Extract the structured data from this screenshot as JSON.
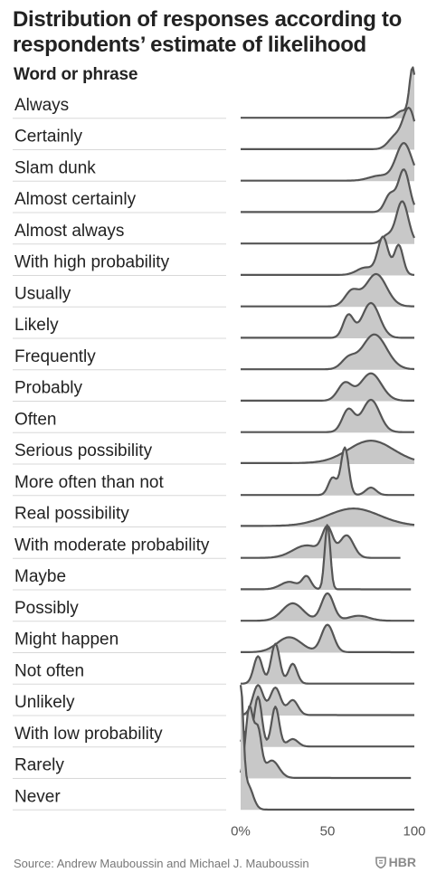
{
  "header": {
    "title": "Distribution of responses according to respondents’ estimate of likelihood",
    "column_label": "Word or phrase"
  },
  "footer": {
    "source": "Source: Andrew Mauboussin and Michael J. Mauboussin",
    "brand": "HBR",
    "brand_icon": "shield-icon"
  },
  "chart_data": {
    "type": "ridgeline",
    "title": "Distribution of responses according to respondents’ estimate of likelihood",
    "ylabel": "Word or phrase",
    "xlim": [
      0,
      100
    ],
    "x_ticks": [
      "0%",
      "50",
      "100"
    ],
    "x_tick_values": [
      0,
      50,
      100
    ],
    "fill_color": "#c8c8c8",
    "line_color": "#555555",
    "series": [
      {
        "name": "Always",
        "start": 0,
        "end": 100,
        "base": 0.01,
        "peaks": [
          {
            "mu": 99,
            "sigma": 1.8,
            "h": 1.0
          },
          {
            "mu": 93,
            "sigma": 3,
            "h": 0.14
          }
        ]
      },
      {
        "name": "Certainly",
        "start": 0,
        "end": 100,
        "base": 0.01,
        "peaks": [
          {
            "mu": 97,
            "sigma": 3.5,
            "h": 0.8
          },
          {
            "mu": 89,
            "sigma": 4,
            "h": 0.25
          }
        ]
      },
      {
        "name": "Slam dunk",
        "start": 0,
        "end": 100,
        "base": 0.01,
        "peaks": [
          {
            "mu": 94,
            "sigma": 4.5,
            "h": 0.75
          },
          {
            "mu": 80,
            "sigma": 6,
            "h": 0.1
          }
        ]
      },
      {
        "name": "Almost certainly",
        "start": 0,
        "end": 100,
        "base": 0.01,
        "peaks": [
          {
            "mu": 94,
            "sigma": 3.2,
            "h": 0.85
          },
          {
            "mu": 86,
            "sigma": 3,
            "h": 0.35
          }
        ]
      },
      {
        "name": "Almost always",
        "start": 0,
        "end": 100,
        "base": 0.01,
        "peaks": [
          {
            "mu": 93,
            "sigma": 3.5,
            "h": 0.85
          },
          {
            "mu": 84,
            "sigma": 3,
            "h": 0.15
          }
        ]
      },
      {
        "name": "With high probability",
        "start": 0,
        "end": 100,
        "base": 0.01,
        "peaks": [
          {
            "mu": 82,
            "sigma": 3,
            "h": 0.75
          },
          {
            "mu": 91,
            "sigma": 2.5,
            "h": 0.6
          },
          {
            "mu": 72,
            "sigma": 5,
            "h": 0.15
          }
        ]
      },
      {
        "name": "Usually",
        "start": 0,
        "end": 100,
        "base": 0.01,
        "peaks": [
          {
            "mu": 78,
            "sigma": 6,
            "h": 0.65
          },
          {
            "mu": 64,
            "sigma": 4,
            "h": 0.3
          }
        ]
      },
      {
        "name": "Likely",
        "start": 0,
        "end": 100,
        "base": 0.01,
        "peaks": [
          {
            "mu": 75,
            "sigma": 5,
            "h": 0.7
          },
          {
            "mu": 62,
            "sigma": 3,
            "h": 0.45
          }
        ]
      },
      {
        "name": "Frequently",
        "start": 0,
        "end": 100,
        "base": 0.01,
        "peaks": [
          {
            "mu": 77,
            "sigma": 7,
            "h": 0.7
          },
          {
            "mu": 62,
            "sigma": 4,
            "h": 0.2
          }
        ]
      },
      {
        "name": "Probably",
        "start": 0,
        "end": 100,
        "base": 0.01,
        "peaks": [
          {
            "mu": 75,
            "sigma": 6,
            "h": 0.55
          },
          {
            "mu": 60,
            "sigma": 4,
            "h": 0.35
          }
        ]
      },
      {
        "name": "Often",
        "start": 0,
        "end": 100,
        "base": 0.01,
        "peaks": [
          {
            "mu": 75,
            "sigma": 5,
            "h": 0.65
          },
          {
            "mu": 62,
            "sigma": 3.5,
            "h": 0.45
          }
        ]
      },
      {
        "name": "Serious possibility",
        "start": 0,
        "end": 100,
        "base": 0.02,
        "peaks": [
          {
            "mu": 75,
            "sigma": 13,
            "h": 0.45
          }
        ]
      },
      {
        "name": "More often than not",
        "start": 0,
        "end": 100,
        "base": 0.01,
        "peaks": [
          {
            "mu": 60,
            "sigma": 2.2,
            "h": 0.95
          },
          {
            "mu": 53,
            "sigma": 2.5,
            "h": 0.35
          },
          {
            "mu": 75,
            "sigma": 3,
            "h": 0.15
          }
        ]
      },
      {
        "name": "Real possibility",
        "start": 0,
        "end": 100,
        "base": 0.02,
        "peaks": [
          {
            "mu": 65,
            "sigma": 15,
            "h": 0.35
          }
        ]
      },
      {
        "name": "With moderate probability",
        "start": 0,
        "end": 92,
        "base": 0.01,
        "peaks": [
          {
            "mu": 50,
            "sigma": 3,
            "h": 0.55
          },
          {
            "mu": 61,
            "sigma": 4,
            "h": 0.45
          },
          {
            "mu": 38,
            "sigma": 8,
            "h": 0.25
          }
        ]
      },
      {
        "name": "Maybe",
        "start": 0,
        "end": 98,
        "base": 0.01,
        "peaks": [
          {
            "mu": 50,
            "sigma": 1.6,
            "h": 1.3
          },
          {
            "mu": 38,
            "sigma": 2.5,
            "h": 0.25
          },
          {
            "mu": 28,
            "sigma": 5,
            "h": 0.15
          }
        ]
      },
      {
        "name": "Possibly",
        "start": 0,
        "end": 100,
        "base": 0.01,
        "peaks": [
          {
            "mu": 50,
            "sigma": 3.5,
            "h": 0.55
          },
          {
            "mu": 30,
            "sigma": 6,
            "h": 0.35
          },
          {
            "mu": 68,
            "sigma": 6,
            "h": 0.1
          }
        ]
      },
      {
        "name": "Might happen",
        "start": 0,
        "end": 100,
        "base": 0.01,
        "peaks": [
          {
            "mu": 50,
            "sigma": 3.5,
            "h": 0.55
          },
          {
            "mu": 28,
            "sigma": 7,
            "h": 0.3
          }
        ]
      },
      {
        "name": "Not often",
        "start": 0,
        "end": 100,
        "base": 0.01,
        "peaks": [
          {
            "mu": 20,
            "sigma": 2.5,
            "h": 0.8
          },
          {
            "mu": 10,
            "sigma": 2.5,
            "h": 0.55
          },
          {
            "mu": 30,
            "sigma": 2.5,
            "h": 0.4
          }
        ]
      },
      {
        "name": "Unlikely",
        "start": 0,
        "end": 100,
        "base": 0.01,
        "peaks": [
          {
            "mu": 10,
            "sigma": 3,
            "h": 0.6
          },
          {
            "mu": 20,
            "sigma": 3,
            "h": 0.55
          },
          {
            "mu": 30,
            "sigma": 3,
            "h": 0.3
          }
        ]
      },
      {
        "name": "With low probability",
        "start": 0,
        "end": 100,
        "base": 0.01,
        "peaks": [
          {
            "mu": 10,
            "sigma": 2.2,
            "h": 1.0
          },
          {
            "mu": 20,
            "sigma": 2.2,
            "h": 0.8
          },
          {
            "mu": 3,
            "sigma": 2,
            "h": 0.3
          },
          {
            "mu": 30,
            "sigma": 3,
            "h": 0.15
          }
        ]
      },
      {
        "name": "Rarely",
        "start": 0,
        "end": 98,
        "base": 0.01,
        "peaks": [
          {
            "mu": 5,
            "sigma": 2.2,
            "h": 1.4
          },
          {
            "mu": 10,
            "sigma": 2,
            "h": 0.9
          },
          {
            "mu": 18,
            "sigma": 4,
            "h": 0.35
          }
        ]
      },
      {
        "name": "Never",
        "start": 0,
        "end": 100,
        "base": 0.005,
        "peaks": [
          {
            "mu": 0,
            "sigma": 1.5,
            "h": 2.3
          },
          {
            "mu": 4,
            "sigma": 3,
            "h": 0.5
          }
        ]
      }
    ]
  }
}
